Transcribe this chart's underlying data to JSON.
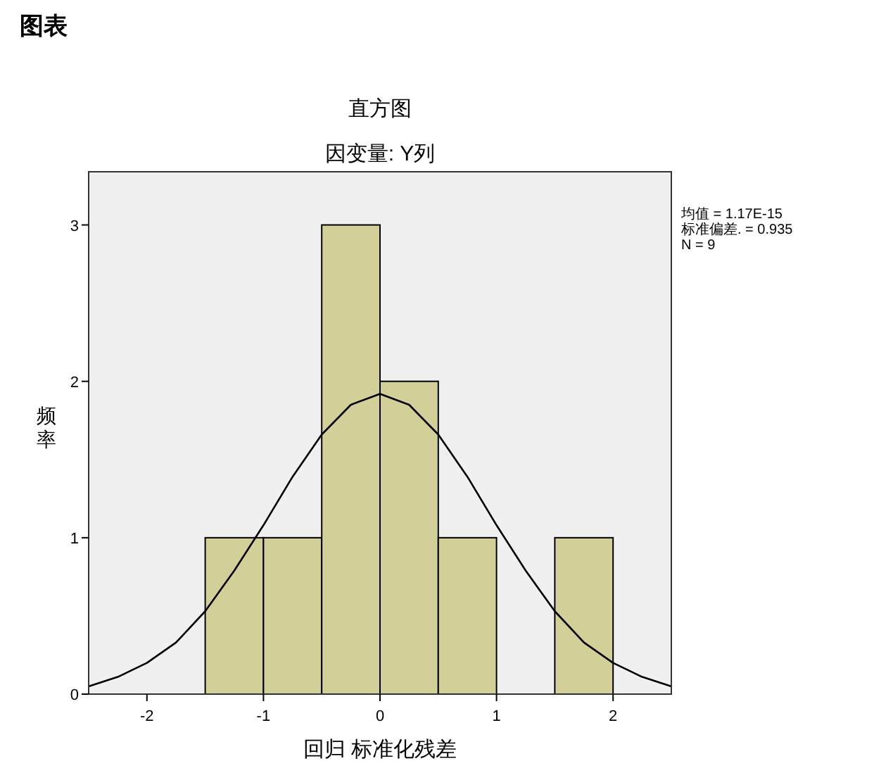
{
  "chart_data": {
    "type": "histogram",
    "title": "直方图",
    "subtitle": "因变量: Y列",
    "xlabel": "回归 标准化残差",
    "ylabel": "频率",
    "annotations": [
      "图表",
      "均值 = 1.17E-15",
      "标准偏差. = 0.935",
      "N = 9"
    ],
    "bins": [
      -1.5,
      -1,
      -0.5,
      0,
      0.5,
      1,
      1.5,
      2
    ],
    "values": [
      1,
      1,
      3,
      2,
      1,
      0,
      1
    ],
    "color": "#d3cf98",
    "series": [
      {
        "type": "line",
        "color": "#000000",
        "x": [
          -2.5,
          -2.25,
          -2,
          -1.75,
          -1.5,
          -1.25,
          -1,
          -0.75,
          -0.5,
          -0.25,
          0,
          0.25,
          0.5,
          0.75,
          1,
          1.25,
          1.5,
          1.75,
          2,
          2.25,
          2.5
        ],
        "values": [
          0.05,
          0.11,
          0.2,
          0.33,
          0.53,
          0.79,
          1.08,
          1.39,
          1.66,
          1.85,
          1.92,
          1.85,
          1.66,
          1.39,
          1.08,
          0.79,
          0.53,
          0.33,
          0.2,
          0.11,
          0.05
        ]
      }
    ],
    "xlim": [
      -2.5,
      2.5
    ],
    "xticks": [
      -2,
      -1,
      0,
      1,
      2
    ],
    "ylim": [
      0,
      3.34
    ],
    "yticks": [
      0,
      1,
      2,
      3
    ],
    "grid": false
  }
}
